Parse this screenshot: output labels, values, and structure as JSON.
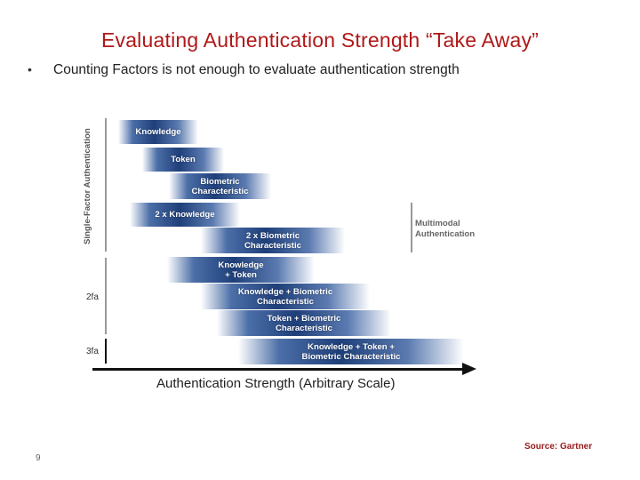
{
  "slide": {
    "title": "Evaluating Authentication Strength “Take Away”",
    "bullet_symbol": "•",
    "bullet": "Counting Factors is not enough to evaluate authentication strength",
    "page_number": "9",
    "source": "Source: Gartner"
  },
  "diagram": {
    "vertical_label": "Single-Factor Authentication",
    "row_labels": {
      "two_fa": "2fa",
      "three_fa": "3fa"
    },
    "multimodal_label": [
      "Multimodal",
      "Authentication"
    ],
    "bars": [
      {
        "lines": [
          "Knowledge"
        ]
      },
      {
        "lines": [
          "Token"
        ]
      },
      {
        "lines": [
          "Biometric",
          "Characteristic"
        ]
      },
      {
        "lines": [
          "2 x Knowledge"
        ]
      },
      {
        "lines": [
          "2 x Biometric",
          "Characteristic"
        ]
      },
      {
        "lines": [
          "Knowledge",
          "+ Token"
        ]
      },
      {
        "lines": [
          "Knowledge + Biometric",
          "Characteristic"
        ]
      },
      {
        "lines": [
          "Token + Biometric",
          "Characteristic"
        ]
      },
      {
        "lines": [
          "Knowledge + Token +",
          "Biometric Characteristic"
        ]
      }
    ],
    "axis_label": "Authentication Strength (Arbitrary Scale)"
  }
}
